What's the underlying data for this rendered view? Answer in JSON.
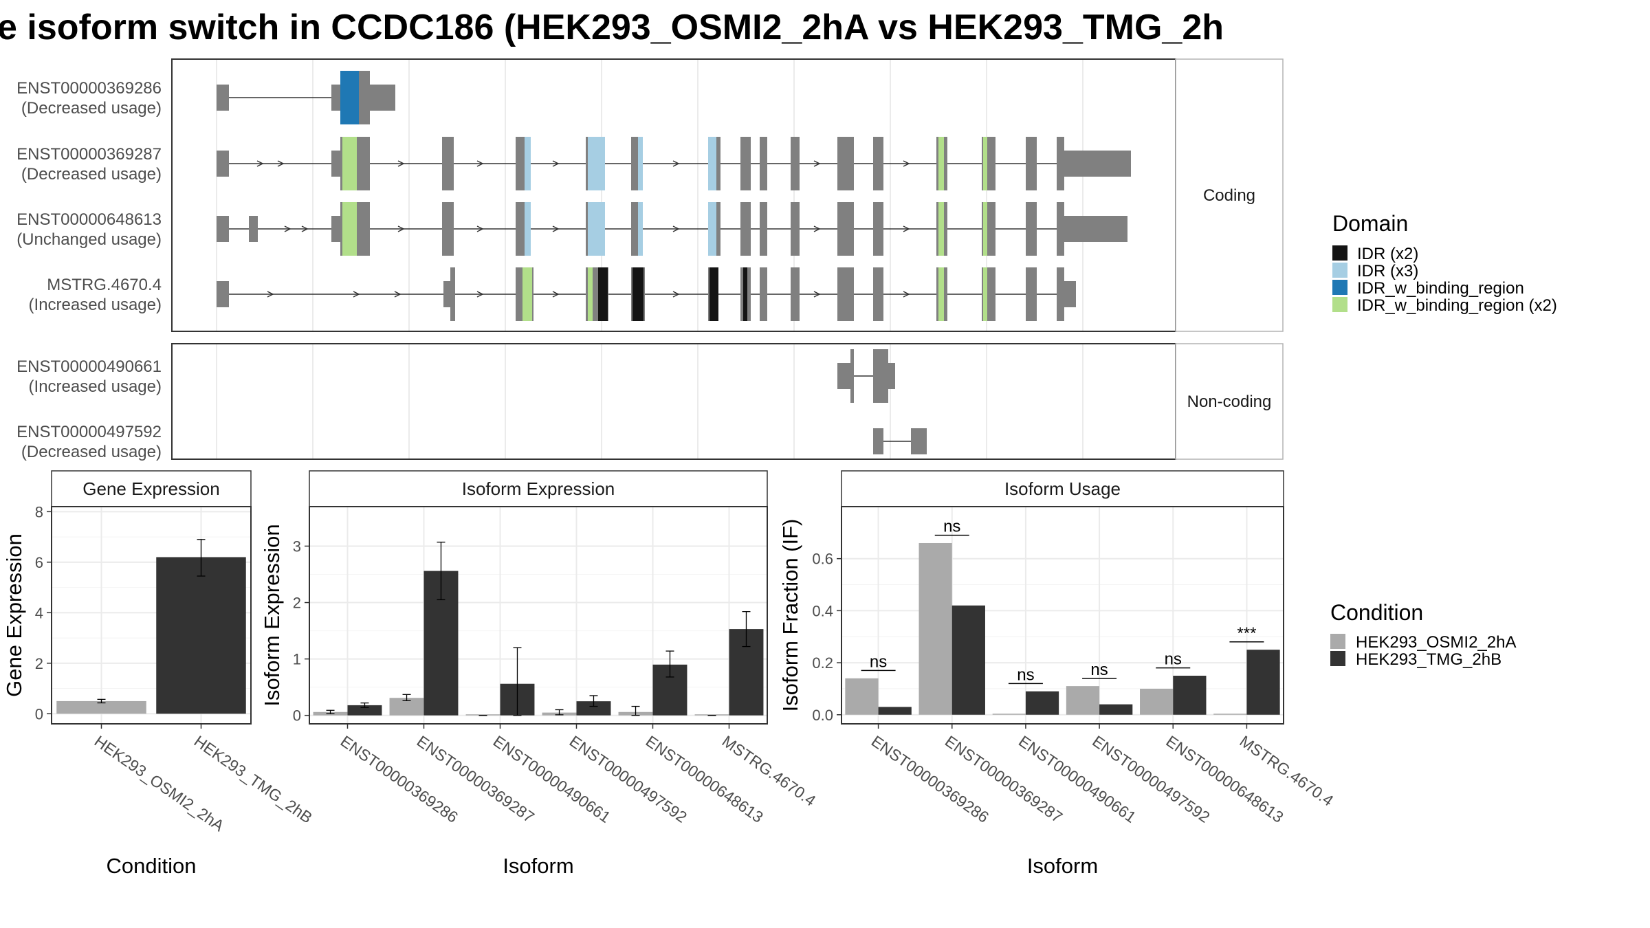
{
  "title": "e isoform switch in CCDC186 (HEK293_OSMI2_2hA vs HEK293_TMG_2h",
  "structure": {
    "facets": [
      "Coding",
      "Non-coding"
    ],
    "isoforms": [
      {
        "id": "ENST00000369286",
        "usage": "(Decreased usage)",
        "facet": "Coding"
      },
      {
        "id": "ENST00000369287",
        "usage": "(Decreased usage)",
        "facet": "Coding"
      },
      {
        "id": "ENST00000648613",
        "usage": "(Unchanged usage)",
        "facet": "Coding"
      },
      {
        "id": "MSTRG.4670.4",
        "usage": "(Increased usage)",
        "facet": "Coding"
      },
      {
        "id": "ENST00000490661",
        "usage": "(Increased usage)",
        "facet": "Non-coding"
      },
      {
        "id": "ENST00000497592",
        "usage": "(Decreased usage)",
        "facet": "Non-coding"
      }
    ],
    "legend_title": "Domain",
    "domains": [
      {
        "name": "IDR (x2)",
        "color": "#141414"
      },
      {
        "name": "IDR (x3)",
        "color": "#a6cee3"
      },
      {
        "name": "IDR_w_binding_region",
        "color": "#1f78b4"
      },
      {
        "name": "IDR_w_binding_region (x2)",
        "color": "#b2df8a"
      }
    ],
    "exon_color": "#808080"
  },
  "chart_data": [
    {
      "type": "bar",
      "title": "Gene Expression",
      "xlabel": "Condition",
      "ylabel": "Gene Expression",
      "categories": [
        "HEK293_OSMI2_2hA",
        "HEK293_TMG_2hB"
      ],
      "values": [
        0.5,
        6.2
      ],
      "errors": [
        [
          0.43,
          0.57
        ],
        [
          5.45,
          6.9
        ]
      ],
      "colors": [
        "#aaaaaa",
        "#333333"
      ],
      "ylim": [
        -0.4,
        8.2
      ],
      "yticks": [
        "0",
        "2",
        "4",
        "6",
        "8"
      ]
    },
    {
      "type": "bar",
      "title": "Isoform Expression",
      "xlabel": "Isoform",
      "ylabel": "Isoform Expression",
      "categories": [
        "ENST00000369286",
        "ENST00000369287",
        "ENST00000490661",
        "ENST00000497592",
        "ENST00000648613",
        "MSTRG.4670.4"
      ],
      "series": [
        {
          "name": "HEK293_OSMI2_2hA",
          "values": [
            0.06,
            0.31,
            0.0,
            0.05,
            0.06,
            0.0
          ],
          "errors": [
            [
              0.03,
              0.09
            ],
            [
              0.26,
              0.37
            ],
            [
              0.0,
              0.0
            ],
            [
              0.01,
              0.1
            ],
            [
              0.0,
              0.16
            ],
            [
              0.0,
              0.0
            ]
          ]
        },
        {
          "name": "HEK293_TMG_2hB",
          "values": [
            0.18,
            2.56,
            0.56,
            0.25,
            0.9,
            1.53
          ],
          "errors": [
            [
              0.14,
              0.22
            ],
            [
              2.05,
              3.07
            ],
            [
              0.0,
              1.2
            ],
            [
              0.16,
              0.35
            ],
            [
              0.68,
              1.14
            ],
            [
              1.22,
              1.84
            ]
          ]
        }
      ],
      "ylim": [
        -0.15,
        3.7
      ],
      "yticks": [
        "0",
        "1",
        "2",
        "3"
      ]
    },
    {
      "type": "bar",
      "title": "Isoform Usage",
      "xlabel": "Isoform",
      "ylabel": "Isoform Fraction (IF)",
      "categories": [
        "ENST00000369286",
        "ENST00000369287",
        "ENST00000490661",
        "ENST00000497592",
        "ENST00000648613",
        "MSTRG.4670.4"
      ],
      "series": [
        {
          "name": "HEK293_OSMI2_2hA",
          "values": [
            0.14,
            0.66,
            0.0,
            0.11,
            0.1,
            0.0
          ]
        },
        {
          "name": "HEK293_TMG_2hB",
          "values": [
            0.03,
            0.42,
            0.09,
            0.04,
            0.15,
            0.25
          ]
        }
      ],
      "significance": [
        {
          "label": "ns",
          "y": 0.17
        },
        {
          "label": "ns",
          "y": 0.69
        },
        {
          "label": "ns",
          "y": 0.12
        },
        {
          "label": "ns",
          "y": 0.14
        },
        {
          "label": "ns",
          "y": 0.18
        },
        {
          "label": "***",
          "y": 0.28
        }
      ],
      "ylim": [
        -0.035,
        0.8
      ],
      "yticks": [
        "0.0",
        "0.2",
        "0.4",
        "0.6"
      ]
    }
  ],
  "condition_legend": {
    "title": "Condition",
    "entries": [
      {
        "name": "HEK293_OSMI2_2hA",
        "color": "#aaaaaa"
      },
      {
        "name": "HEK293_TMG_2hB",
        "color": "#333333"
      }
    ]
  }
}
